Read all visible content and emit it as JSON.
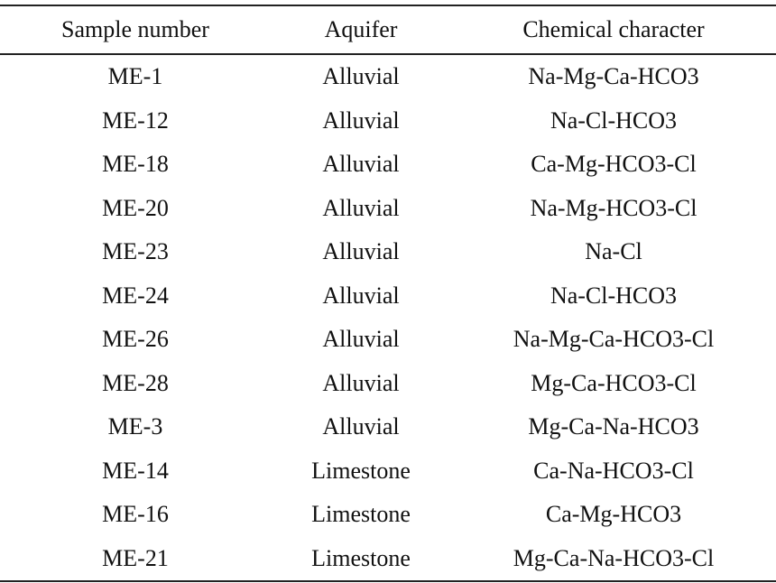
{
  "table": {
    "header": [
      "Sample number",
      "Aquifer",
      "Chemical character"
    ],
    "rows": [
      [
        "ME-1",
        "Alluvial",
        "Na-Mg-Ca-HCO3"
      ],
      [
        "ME-12",
        "Alluvial",
        "Na-Cl-HCO3"
      ],
      [
        "ME-18",
        "Alluvial",
        "Ca-Mg-HCO3-Cl"
      ],
      [
        "ME-20",
        "Alluvial",
        "Na-Mg-HCO3-Cl"
      ],
      [
        "ME-23",
        "Alluvial",
        "Na-Cl"
      ],
      [
        "ME-24",
        "Alluvial",
        "Na-Cl-HCO3"
      ],
      [
        "ME-26",
        "Alluvial",
        "Na-Mg-Ca-HCO3-Cl"
      ],
      [
        "ME-28",
        "Alluvial",
        "Mg-Ca-HCO3-Cl"
      ],
      [
        "ME-3",
        "Alluvial",
        "Mg-Ca-Na-HCO3"
      ],
      [
        "ME-14",
        "Limestone",
        "Ca-Na-HCO3-Cl"
      ],
      [
        "ME-16",
        "Limestone",
        "Ca-Mg-HCO3"
      ],
      [
        "ME-21",
        "Limestone",
        "Mg-Ca-Na-HCO3-Cl"
      ]
    ]
  }
}
